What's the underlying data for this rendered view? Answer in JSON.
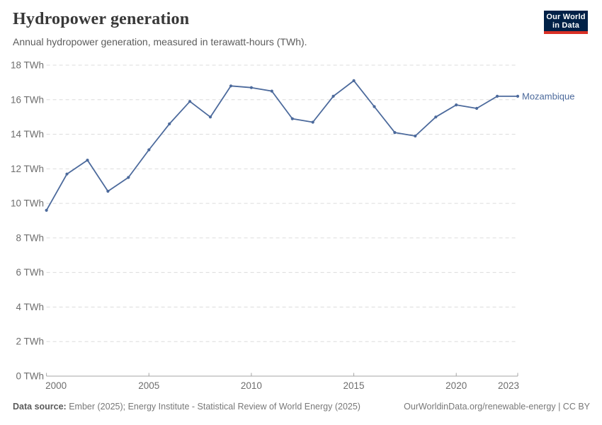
{
  "header": {
    "title": "Hydropower generation",
    "subtitle": "Annual hydropower generation, measured in terawatt-hours (TWh).",
    "logo": {
      "line1": "Our World",
      "line2": "in Data"
    }
  },
  "chart_data": {
    "type": "line",
    "title": "Hydropower generation",
    "subtitle": "Annual hydropower generation, measured in terawatt-hours (TWh).",
    "series": [
      {
        "name": "Mozambique",
        "color": "#4c6a9c",
        "x": [
          2000,
          2001,
          2002,
          2003,
          2004,
          2005,
          2006,
          2007,
          2008,
          2009,
          2010,
          2011,
          2012,
          2013,
          2014,
          2015,
          2016,
          2017,
          2018,
          2019,
          2020,
          2021,
          2022,
          2023
        ],
        "values": [
          9.6,
          11.7,
          12.5,
          10.7,
          11.5,
          13.1,
          14.6,
          15.9,
          15.0,
          16.8,
          16.7,
          16.5,
          14.9,
          14.7,
          16.2,
          17.1,
          15.6,
          14.1,
          13.9,
          15.0,
          15.7,
          15.5,
          16.2,
          16.2
        ]
      }
    ],
    "xlabel": "",
    "ylabel": "",
    "xlim": [
      2000,
      2023
    ],
    "ylim": [
      0,
      18
    ],
    "x_ticks": [
      2000,
      2005,
      2010,
      2015,
      2020,
      2023
    ],
    "x_tick_labels": [
      "2000",
      "2005",
      "2010",
      "2015",
      "2020",
      "2023"
    ],
    "y_ticks": [
      0,
      2,
      4,
      6,
      8,
      10,
      12,
      14,
      16,
      18
    ],
    "y_tick_labels": [
      "0 TWh",
      "2 TWh",
      "4 TWh",
      "6 TWh",
      "8 TWh",
      "10 TWh",
      "12 TWh",
      "14 TWh",
      "16 TWh",
      "18 TWh"
    ],
    "grid": "dashed-horizontal",
    "legend_position": "end-of-line-label",
    "end_label": "Mozambique"
  },
  "footer": {
    "source_label": "Data source:",
    "source_text": " Ember (2025); Energy Institute - Statistical Review of World Energy (2025)",
    "credit": "OurWorldinData.org/renewable-energy | CC BY"
  },
  "colors": {
    "line": "#4c6a9c",
    "grid": "#dcdcdc",
    "axis": "#a5a5a5",
    "tick_label": "#6e6e6e",
    "title": "#383838",
    "subtitle": "#5c5c5c",
    "footer": "#787878",
    "logo_bg": "#002147",
    "logo_accent": "#d93025"
  }
}
